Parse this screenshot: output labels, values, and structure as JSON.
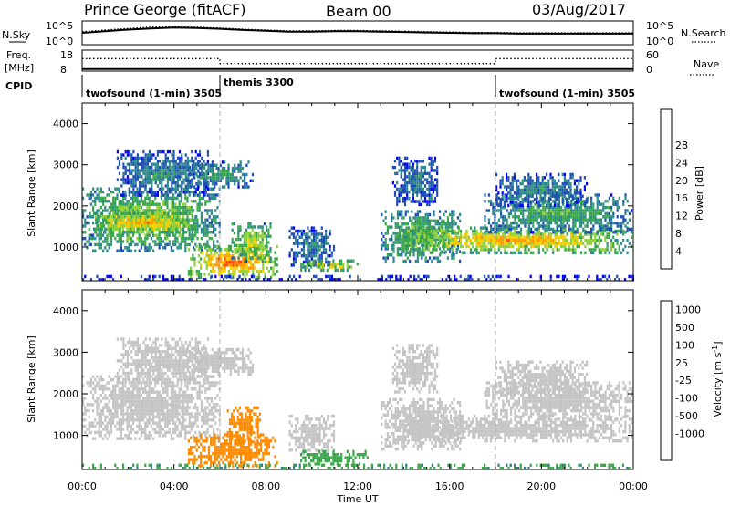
{
  "header": {
    "station": "Prince George (fitACF)",
    "beam": "Beam 00",
    "date": "03/Aug/2017"
  },
  "noise_panel": {
    "left_label": "N.Sky",
    "left_ticks": [
      "10^5",
      "10^0"
    ],
    "right_ticks": [
      "10^5",
      "10^0"
    ],
    "right_label": "N.Search"
  },
  "freq_panel": {
    "left_label_1": "Freq.",
    "left_label_2": "[MHz]",
    "left_ticks": [
      "18",
      "8"
    ],
    "right_ticks": [
      "60",
      "0"
    ],
    "right_label": "Nave"
  },
  "cpid": {
    "label": "CPID",
    "segments": [
      {
        "name": "twofsound (1-min)",
        "id": "3505",
        "start_h": 0.0,
        "end_h": 6.0
      },
      {
        "name": "themis",
        "id": "3300",
        "start_h": 6.0,
        "end_h": 18.0
      },
      {
        "name": "twofsound (1-min)",
        "id": "3505",
        "start_h": 18.0,
        "end_h": 24.0
      }
    ]
  },
  "colors": {
    "power": [
      "#0000ff",
      "#1f4fb4",
      "#2f8a8a",
      "#3aa84a",
      "#8fd03a",
      "#f5d000",
      "#ff9b00",
      "#ff4a00",
      "#ff0000"
    ],
    "velocity": [
      "#1e40c8",
      "#2d7f8a",
      "#3aa84a",
      "#7fd040",
      "#c4c4c4",
      "#f0b000",
      "#ff8a00",
      "#ff4400",
      "#ee0000"
    ]
  },
  "chart_data": [
    {
      "type": "line",
      "name": "noise",
      "x_range_h": [
        0,
        24
      ],
      "log_scale": true,
      "ylim_log10": [
        0,
        5
      ],
      "series": [
        {
          "name": "N.Sky",
          "style": "solid",
          "x": [
            0,
            1,
            2,
            3,
            4,
            5,
            6,
            7,
            8,
            9,
            10,
            11,
            12,
            13,
            14,
            15,
            16,
            17,
            18,
            19,
            20,
            21,
            22,
            23,
            24
          ],
          "y": [
            2.5,
            2.9,
            3.3,
            3.6,
            3.8,
            3.7,
            3.5,
            3.2,
            3.0,
            2.8,
            2.8,
            2.9,
            2.9,
            2.8,
            2.7,
            2.6,
            2.5,
            2.4,
            2.4,
            2.3,
            2.3,
            2.3,
            2.3,
            2.3,
            2.3
          ]
        },
        {
          "name": "N.Search",
          "style": "dotted",
          "x": [
            0,
            1,
            2,
            3,
            4,
            5,
            6,
            7,
            8,
            9,
            10,
            11,
            12,
            13,
            14,
            15,
            16,
            17,
            18,
            19,
            20,
            21,
            22,
            23,
            24
          ],
          "y": [
            2.8,
            3.2,
            3.6,
            3.9,
            4.0,
            3.9,
            3.7,
            3.4,
            3.2,
            3.0,
            3.0,
            3.1,
            3.1,
            3.0,
            2.9,
            2.8,
            2.7,
            2.6,
            2.6,
            2.5,
            2.5,
            2.5,
            2.5,
            2.5,
            2.5
          ]
        }
      ]
    },
    {
      "type": "line",
      "name": "frequency",
      "x_range_h": [
        0,
        24
      ],
      "series": [
        {
          "name": "Freq.",
          "style": "solid",
          "ylim": [
            8,
            18
          ],
          "x": [
            0,
            24
          ],
          "y": [
            8.6,
            8.6
          ]
        },
        {
          "name": "Nave",
          "style": "dotted",
          "ylim": [
            0,
            60
          ],
          "x": [
            0,
            6,
            6,
            18,
            18,
            24
          ],
          "y": [
            38,
            38,
            22,
            22,
            38,
            38
          ]
        }
      ]
    },
    {
      "type": "heatmap",
      "name": "power",
      "xlabel": "",
      "ylabel": "Slant Range [km]",
      "xlim_h": [
        0,
        24
      ],
      "ylim": [
        180,
        4500
      ],
      "yticks": [
        "1000",
        "2000",
        "3000",
        "4000"
      ],
      "colorbar_label": "Power [dB]",
      "colorbar_ticks": [
        "4",
        "8",
        "12",
        "16",
        "20",
        "24",
        "28"
      ],
      "bands": [
        {
          "t0": 0.0,
          "t1": 6.0,
          "r0": 850,
          "r1": 2450,
          "v": 14
        },
        {
          "t0": 0.3,
          "t1": 5.0,
          "r0": 1350,
          "r1": 1850,
          "v": 20
        },
        {
          "t0": 1.5,
          "t1": 5.5,
          "r0": 2200,
          "r1": 3350,
          "v": 8
        },
        {
          "t0": 4.5,
          "t1": 7.5,
          "r0": 2400,
          "r1": 3100,
          "v": 10
        },
        {
          "t0": 4.6,
          "t1": 8.5,
          "r0": 250,
          "r1": 1050,
          "v": 22
        },
        {
          "t0": 6.5,
          "t1": 8.3,
          "r0": 650,
          "r1": 1600,
          "v": 16
        },
        {
          "t0": 9.0,
          "t1": 11.0,
          "r0": 550,
          "r1": 1500,
          "v": 8
        },
        {
          "t0": 9.5,
          "t1": 12.0,
          "r0": 380,
          "r1": 700,
          "v": 18
        },
        {
          "t0": 13.0,
          "t1": 16.5,
          "r0": 600,
          "r1": 1900,
          "v": 13
        },
        {
          "t0": 13.5,
          "t1": 15.5,
          "r0": 2000,
          "r1": 3200,
          "v": 7
        },
        {
          "t0": 14.0,
          "t1": 24.0,
          "r0": 800,
          "r1": 1500,
          "v": 19
        },
        {
          "t0": 17.5,
          "t1": 24.0,
          "r0": 1300,
          "r1": 2300,
          "v": 11
        },
        {
          "t0": 18.0,
          "t1": 22.0,
          "r0": 2000,
          "r1": 2800,
          "v": 8
        },
        {
          "t0": 0.0,
          "t1": 24.0,
          "r0": 180,
          "r1": 320,
          "v": 6
        }
      ]
    },
    {
      "type": "heatmap",
      "name": "velocity",
      "xlabel": "Time UT",
      "ylabel": "Slant Range [km]",
      "xlim_h": [
        0,
        24
      ],
      "ylim": [
        180,
        4500
      ],
      "yticks": [
        "1000",
        "2000",
        "3000",
        "4000"
      ],
      "xticks": [
        "00:00",
        "04:00",
        "08:00",
        "12:00",
        "16:00",
        "20:00",
        "00:00"
      ],
      "colorbar_label": "Velocity [m s^-1]",
      "colorbar_ticks": [
        "1000",
        "500",
        "100",
        "25",
        "-25",
        "-100",
        "-500",
        "-1000"
      ],
      "bands": [
        {
          "t0": 0.0,
          "t1": 6.0,
          "r0": 850,
          "r1": 2450,
          "v": 0
        },
        {
          "t0": 1.5,
          "t1": 5.5,
          "r0": 2200,
          "r1": 3350,
          "v": 0
        },
        {
          "t0": 4.5,
          "t1": 7.5,
          "r0": 2400,
          "r1": 3100,
          "v": 0
        },
        {
          "t0": 4.6,
          "t1": 8.5,
          "r0": 250,
          "r1": 1050,
          "v": -120
        },
        {
          "t0": 6.3,
          "t1": 7.8,
          "r0": 800,
          "r1": 1700,
          "v": -200
        },
        {
          "t0": 9.0,
          "t1": 11.0,
          "r0": 550,
          "r1": 1500,
          "v": 0
        },
        {
          "t0": 9.5,
          "t1": 12.5,
          "r0": 250,
          "r1": 650,
          "v": 80
        },
        {
          "t0": 13.0,
          "t1": 16.5,
          "r0": 600,
          "r1": 1900,
          "v": 0
        },
        {
          "t0": 13.5,
          "t1": 15.5,
          "r0": 2000,
          "r1": 3200,
          "v": 0
        },
        {
          "t0": 14.0,
          "t1": 24.0,
          "r0": 800,
          "r1": 1500,
          "v": 0
        },
        {
          "t0": 17.5,
          "t1": 24.0,
          "r0": 1300,
          "r1": 2300,
          "v": 0
        },
        {
          "t0": 18.0,
          "t1": 22.0,
          "r0": 2000,
          "r1": 2800,
          "v": 0
        },
        {
          "t0": 0.0,
          "t1": 24.0,
          "r0": 180,
          "r1": 320,
          "v": 90
        }
      ]
    }
  ]
}
